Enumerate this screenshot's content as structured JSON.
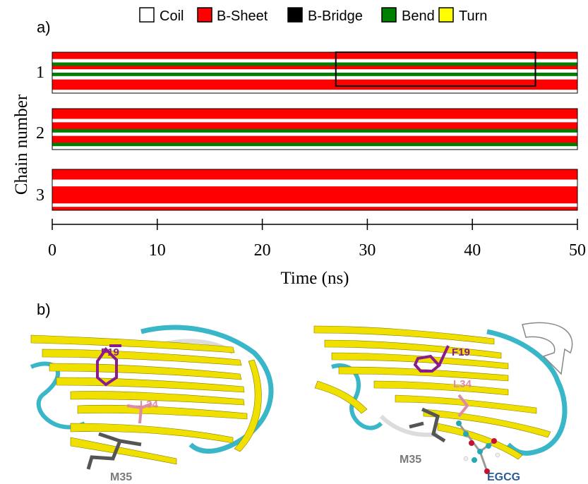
{
  "panel_a": {
    "label": "a)",
    "ylabel": "Chain number",
    "xlabel": "Time (ns)",
    "xticks": [
      "0",
      "10",
      "20",
      "30",
      "40",
      "50"
    ],
    "chain_labels": [
      "1",
      "2",
      "3"
    ],
    "legend": [
      {
        "name": "Coil",
        "color": "#ffffff"
      },
      {
        "name": "B-Sheet",
        "color": "#ff0000"
      },
      {
        "name": "B-Bridge",
        "color": "#000000"
      },
      {
        "name": "Bend",
        "color": "#008000"
      },
      {
        "name": "Turn",
        "color": "#ffff00"
      }
    ],
    "highlight_box_ns": [
      27,
      46
    ]
  },
  "panel_b": {
    "label": "b)",
    "left": {
      "residues": [
        "F19",
        "L34",
        "M35"
      ]
    },
    "right": {
      "residues": [
        "F19",
        "L34",
        "M35",
        "EGCG"
      ]
    },
    "colors": {
      "F19": "#8b1a8b",
      "L34": "#e08aa8",
      "M35": "#7a7a7a",
      "EGCG": "#2a5a9a",
      "strand": "#f0e000",
      "loop": "#39b7c8",
      "coil": "#e8e8e8"
    }
  },
  "chart_data": {
    "type": "heatmap",
    "title": "",
    "xlabel": "Time (ns)",
    "ylabel": "Chain number",
    "xlim": [
      0,
      50
    ],
    "categories": [
      "1",
      "2",
      "3"
    ],
    "states": [
      "Coil",
      "B-Sheet",
      "B-Bridge",
      "Bend",
      "Turn"
    ],
    "series": [
      {
        "name": "1",
        "rows": [
          "sheet",
          "sheet",
          "coil",
          "bend",
          "sheet",
          "coil",
          "bend",
          "coil",
          "sheet",
          "sheet",
          "sheet",
          "coil"
        ]
      },
      {
        "name": "2",
        "rows": [
          "sheet",
          "sheet",
          "sheet",
          "coil",
          "sheet",
          "sheet",
          "bend",
          "coil",
          "sheet",
          "sheet",
          "bend",
          "coil"
        ]
      },
      {
        "name": "3",
        "rows": [
          "sheet",
          "sheet",
          "sheet",
          "coil",
          "coil",
          "sheet",
          "sheet",
          "sheet",
          "sheet",
          "sheet",
          "coil",
          "sheet"
        ]
      }
    ]
  }
}
